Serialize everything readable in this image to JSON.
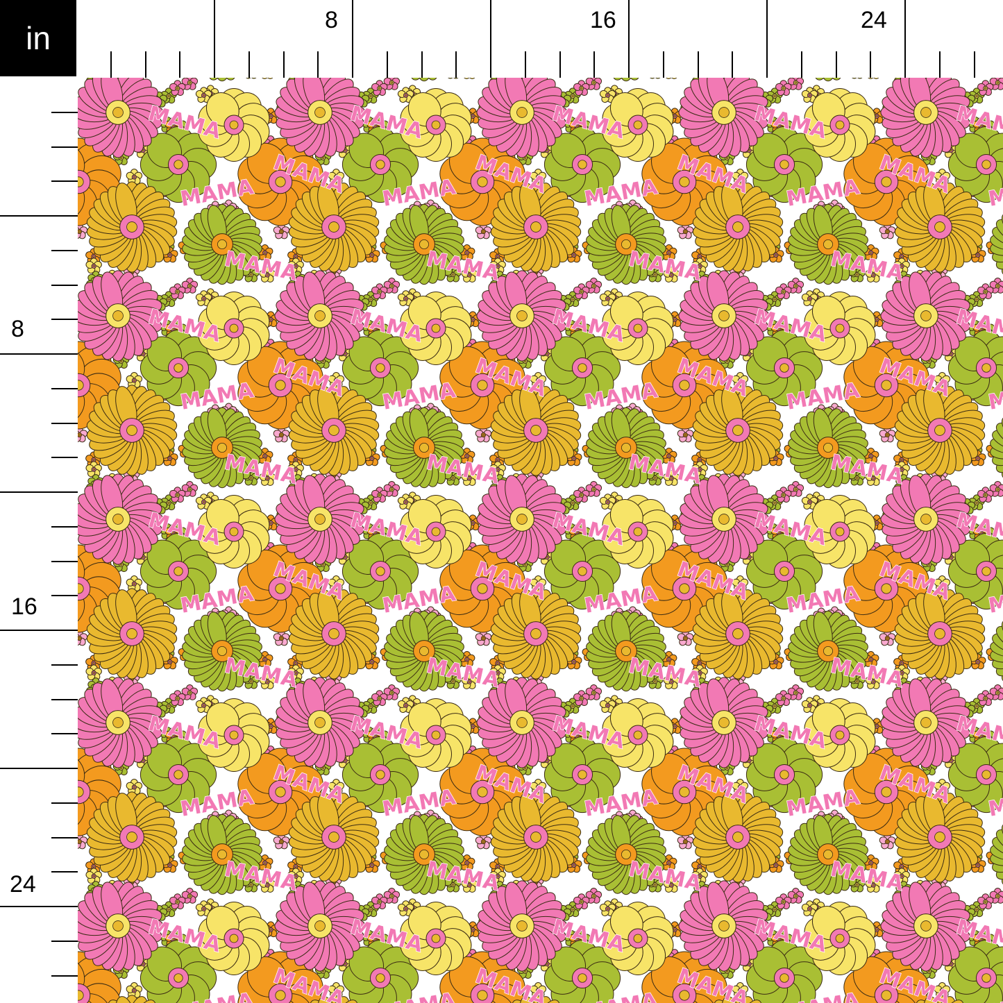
{
  "ruler": {
    "unit": "in",
    "top_labels": [
      "8",
      "16",
      "24"
    ],
    "left_labels": [
      "8",
      "16",
      "24"
    ]
  },
  "fabric": {
    "print_text": "MAMA",
    "colors": {
      "pink": "#f279b4",
      "light_pink": "#f8a9cf",
      "yellow": "#f7e468",
      "mustard": "#e9b92f",
      "orange": "#f39a1f",
      "green": "#a9bf34",
      "background": "#ffffff",
      "outline": "#3a2a12"
    }
  }
}
